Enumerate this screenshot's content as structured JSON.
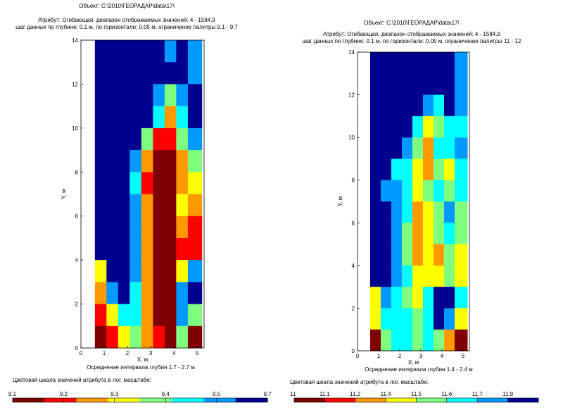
{
  "panels": [
    {
      "object": "Объект:  C:\\2010\\ГЕОРАДАР\\data\\17\\",
      "attribute": "Атрибут:  Огибающая, диапазон отображаемых значений: 4 - 1584.9",
      "step": "шаг данных по глубине: 0.1 м, по горизонтали: 0.05 м, ограничение палитры 9.1 - 9.7",
      "xlabel": "X, м",
      "ylabel": "Y, м",
      "averaging": "Осреднение интервала глубин 1.7 - 2.7 м",
      "scale_title": "Цветовая шкала значений атрибута в лог. масштабе:",
      "colorbar_ticks": [
        "9.1",
        "9.2",
        "9.3",
        "9.4",
        "9.5",
        "9.7"
      ]
    },
    {
      "object": "Объект:  C:\\2010\\ГЕОРАДАР\\data\\17\\",
      "attribute": "Атрибут:  Огибающая, диапазон отображаемых значений: 4 - 1584.9",
      "step": "шаг данных по глубине: 0.1 м, по горизонтали: 0.05 м, ограничение палитры 11 - 12",
      "xlabel": "X, м",
      "ylabel": "Y, м",
      "averaging": "Осреднение интервала глубин 1.4 - 2.4 м",
      "scale_title": "Цветовая шкала значений атрибута в лог. масштабе:",
      "colorbar_ticks": [
        "11",
        "11.1",
        "11.2",
        "11.4",
        "11.5",
        "11.6",
        "11.7",
        "11.9"
      ]
    }
  ],
  "palette": [
    "#7f0000",
    "#ff0000",
    "#ff9900",
    "#ffff00",
    "#7fff7f",
    "#00ffff",
    "#0099ff",
    "#00008f"
  ],
  "chart_data": [
    {
      "type": "heatmap",
      "xlim": [
        0,
        5.3
      ],
      "ylim": [
        0,
        14
      ],
      "xticks": [
        0,
        1,
        2,
        3,
        4,
        5
      ],
      "yticks": [
        0,
        2,
        4,
        6,
        8,
        10,
        12,
        14
      ],
      "data_x_range": [
        0.6,
        5.2
      ],
      "cells": {
        "x": [
          0.6,
          1.1,
          1.6,
          2.1,
          2.6,
          3.1,
          3.6,
          4.1,
          4.6
        ],
        "y_rows_top_to_bottom": [
          14,
          13,
          12,
          11,
          10,
          9,
          8,
          7,
          6,
          5,
          4,
          3,
          2,
          1
        ],
        "levels": [
          [
            7,
            7,
            7,
            7,
            7,
            7,
            6,
            7,
            6
          ],
          [
            7,
            7,
            7,
            7,
            7,
            7,
            7,
            7,
            6
          ],
          [
            7,
            7,
            7,
            7,
            7,
            6,
            4,
            6,
            7
          ],
          [
            7,
            7,
            7,
            7,
            7,
            5,
            2,
            5,
            7
          ],
          [
            7,
            7,
            7,
            7,
            4,
            1,
            1,
            4,
            6
          ],
          [
            7,
            7,
            7,
            6,
            2,
            0,
            0,
            2,
            4
          ],
          [
            7,
            7,
            7,
            5,
            1,
            0,
            0,
            2,
            3
          ],
          [
            7,
            7,
            7,
            6,
            2,
            0,
            0,
            3,
            2
          ],
          [
            7,
            7,
            7,
            6,
            2,
            0,
            0,
            2,
            1
          ],
          [
            7,
            7,
            7,
            6,
            2,
            0,
            0,
            1,
            1
          ],
          [
            3,
            7,
            7,
            6,
            2,
            0,
            0,
            3,
            6
          ],
          [
            2,
            6,
            7,
            5,
            2,
            0,
            0,
            6,
            7
          ],
          [
            1,
            3,
            5,
            5,
            2,
            0,
            0,
            6,
            4
          ],
          [
            0,
            1,
            3,
            4,
            2,
            1,
            0,
            4,
            0
          ]
        ]
      },
      "colorbar": {
        "ticks": [
          9.1,
          9.2,
          9.3,
          9.4,
          9.5,
          9.7
        ]
      }
    },
    {
      "type": "heatmap",
      "xlim": [
        0,
        5.3
      ],
      "ylim": [
        0,
        14
      ],
      "xticks": [
        0,
        1,
        2,
        3,
        4,
        5
      ],
      "yticks": [
        0,
        2,
        4,
        6,
        8,
        10,
        12,
        14
      ],
      "data_x_range": [
        0.6,
        5.2
      ],
      "cells": {
        "x": [
          0.6,
          1.1,
          1.6,
          2.1,
          2.6,
          3.1,
          3.6,
          4.1,
          4.6
        ],
        "y_rows_top_to_bottom": [
          14,
          13,
          12,
          11,
          10,
          9,
          8,
          7,
          6,
          5,
          4,
          3,
          2,
          1
        ],
        "levels": [
          [
            7,
            7,
            7,
            7,
            7,
            7,
            7,
            7,
            6
          ],
          [
            7,
            7,
            7,
            7,
            7,
            7,
            7,
            7,
            6
          ],
          [
            7,
            7,
            7,
            7,
            7,
            6,
            5,
            7,
            6
          ],
          [
            7,
            7,
            7,
            7,
            5,
            3,
            4,
            5,
            5
          ],
          [
            7,
            7,
            7,
            6,
            4,
            2,
            5,
            5,
            6
          ],
          [
            7,
            7,
            5,
            5,
            3,
            2,
            4,
            3,
            5
          ],
          [
            7,
            6,
            6,
            5,
            3,
            4,
            5,
            4,
            5
          ],
          [
            7,
            7,
            6,
            5,
            2,
            3,
            4,
            6,
            4
          ],
          [
            7,
            7,
            6,
            4,
            2,
            3,
            4,
            5,
            4
          ],
          [
            7,
            7,
            6,
            4,
            2,
            3,
            2,
            4,
            3
          ],
          [
            7,
            7,
            6,
            5,
            3,
            3,
            3,
            4,
            3
          ],
          [
            3,
            6,
            5,
            4,
            3,
            5,
            7,
            7,
            5
          ],
          [
            3,
            5,
            5,
            5,
            4,
            5,
            7,
            6,
            3
          ],
          [
            0,
            4,
            5,
            5,
            4,
            5,
            4,
            2,
            0
          ]
        ]
      },
      "colorbar": {
        "ticks": [
          11,
          11.1,
          11.2,
          11.4,
          11.5,
          11.6,
          11.7,
          11.9
        ]
      }
    }
  ]
}
